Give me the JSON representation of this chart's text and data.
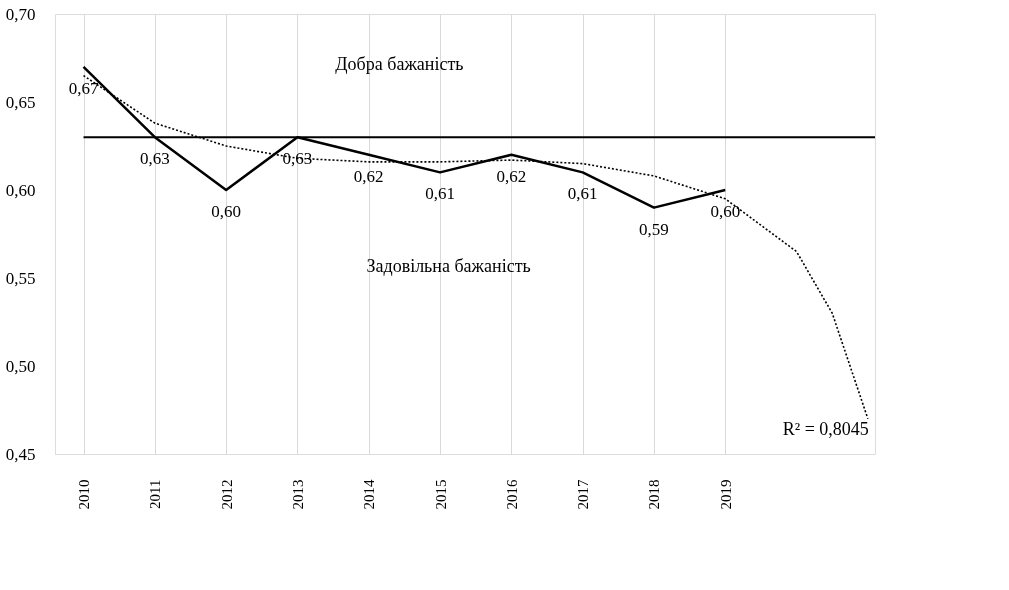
{
  "chart_data": {
    "type": "line",
    "x": [
      2010,
      2011,
      2012,
      2013,
      2014,
      2015,
      2016,
      2017,
      2018,
      2019
    ],
    "series": [
      {
        "color": "#000000",
        "line_style": "solid",
        "values": [
          0.67,
          0.63,
          0.6,
          0.63,
          0.62,
          0.61,
          0.62,
          0.61,
          0.59,
          0.6
        ],
        "value_labels": [
          "0,67",
          "0,63",
          "0,60",
          "0,63",
          "0,62",
          "0,61",
          "0,62",
          "0,61",
          "0,59",
          "0,60"
        ]
      },
      {
        "color": "#000000",
        "line_style": "dotted",
        "x": [
          2010,
          2011,
          2012,
          2013,
          2014,
          2015,
          2016,
          2017,
          2018,
          2019,
          2020,
          2020.5,
          2021
        ],
        "values": [
          0.665,
          0.638,
          0.625,
          0.618,
          0.616,
          0.616,
          0.617,
          0.615,
          0.608,
          0.595,
          0.565,
          0.53,
          0.47
        ]
      }
    ],
    "xlim": [
      2009.6,
      2021.1
    ],
    "xticks": [
      {
        "value": 2010,
        "label": "2010"
      },
      {
        "value": 2011,
        "label": "2011"
      },
      {
        "value": 2012,
        "label": "2012"
      },
      {
        "value": 2013,
        "label": "2013"
      },
      {
        "value": 2014,
        "label": "2014"
      },
      {
        "value": 2015,
        "label": "2015"
      },
      {
        "value": 2016,
        "label": "2016"
      },
      {
        "value": 2017,
        "label": "2017"
      },
      {
        "value": 2018,
        "label": "2018"
      },
      {
        "value": 2019,
        "label": "2019"
      }
    ],
    "ylim": [
      0.45,
      0.7
    ],
    "yticks": [
      {
        "value": 0.45,
        "label": "0,45"
      },
      {
        "value": 0.5,
        "label": "0,50"
      },
      {
        "value": 0.55,
        "label": "0,55"
      },
      {
        "value": 0.6,
        "label": "0,60"
      },
      {
        "value": 0.65,
        "label": "0,65"
      },
      {
        "value": 0.7,
        "label": "0,70"
      }
    ],
    "grid": "x",
    "marker": "none",
    "ref_lines": [
      {
        "axis": "y",
        "value": 0.63,
        "color": "#000000",
        "line_style": "solid"
      }
    ],
    "annotations": [
      "Добра бажаність",
      "Задовільна бажаність",
      "R² = 0,8045"
    ]
  }
}
